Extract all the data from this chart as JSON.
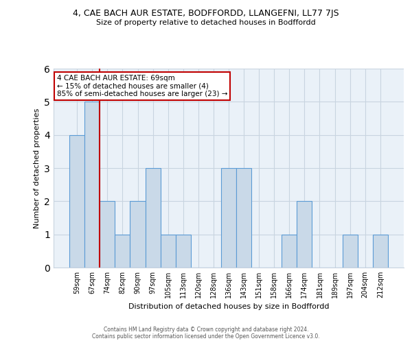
{
  "title": "4, CAE BACH AUR ESTATE, BODFFORDD, LLANGEFNI, LL77 7JS",
  "subtitle": "Size of property relative to detached houses in Bodffordd",
  "xlabel": "Distribution of detached houses by size in Bodffordd",
  "ylabel": "Number of detached properties",
  "categories": [
    "59sqm",
    "67sqm",
    "74sqm",
    "82sqm",
    "90sqm",
    "97sqm",
    "105sqm",
    "113sqm",
    "120sqm",
    "128sqm",
    "136sqm",
    "143sqm",
    "151sqm",
    "158sqm",
    "166sqm",
    "174sqm",
    "181sqm",
    "189sqm",
    "197sqm",
    "204sqm",
    "212sqm"
  ],
  "values": [
    4,
    5,
    2,
    1,
    2,
    3,
    1,
    1,
    0,
    0,
    3,
    3,
    0,
    0,
    1,
    2,
    0,
    0,
    1,
    0,
    1
  ],
  "bar_color": "#c9d9e8",
  "bar_edgecolor": "#5b9bd5",
  "vline_x": 1.5,
  "vline_color": "#c00000",
  "annotation_lines": [
    "4 CAE BACH AUR ESTATE: 69sqm",
    "← 15% of detached houses are smaller (4)",
    "85% of semi-detached houses are larger (23) →"
  ],
  "annotation_box_color": "#c00000",
  "ylim": [
    0,
    6
  ],
  "yticks": [
    0,
    1,
    2,
    3,
    4,
    5,
    6
  ],
  "grid_color": "#c8d4e0",
  "background_color": "#eaf1f8",
  "title_fontsize": 9.0,
  "subtitle_fontsize": 8.0,
  "ylabel_fontsize": 8.0,
  "xlabel_fontsize": 8.0,
  "tick_fontsize": 7.0,
  "annotation_fontsize": 7.5,
  "footer_line1": "Contains HM Land Registry data © Crown copyright and database right 2024.",
  "footer_line2": "Contains public sector information licensed under the Open Government Licence v3.0.",
  "footer_fontsize": 5.5
}
